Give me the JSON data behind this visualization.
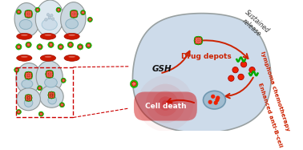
{
  "bg_color": "#ffffff",
  "cell_face": "#ccd8e0",
  "cell_edge": "#909898",
  "nucleus_face": "#b8ceda",
  "nucleus_edge": "#8aafc0",
  "red_pill_face": "#cc1800",
  "red_pill_edge": "#991000",
  "green_color": "#22cc00",
  "red_dot": "#ee2200",
  "arrow_color": "#cc2200",
  "dash_color": "#cc0000",
  "large_cell_face": "#c8d8e8",
  "large_cell_edge": "#909898",
  "text_gsh": "GSH",
  "text_drug": "Drug depots",
  "text_sustained": "Sustained\nrelease",
  "text_cell_death": "Cell death",
  "text_enhanced_1": "Enhanced anti-B-cell",
  "text_enhanced_2": "lymphoma chemotherapy"
}
